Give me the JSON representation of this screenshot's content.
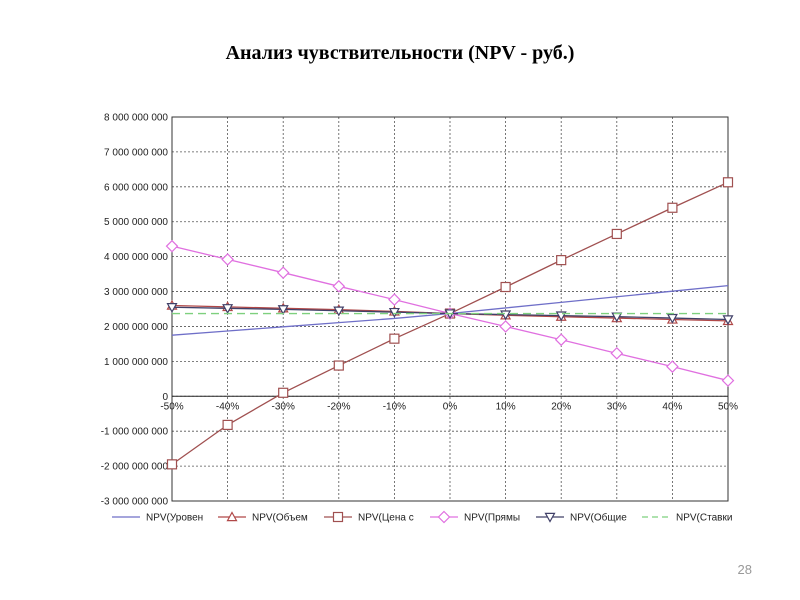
{
  "slide": {
    "title": "Анализ чувствительности (NPV - руб.)",
    "page_number": "28"
  },
  "chart_data": {
    "type": "line",
    "title": "",
    "xlabel": "",
    "ylabel": "",
    "x": [
      -50,
      -40,
      -30,
      -20,
      -10,
      0,
      10,
      20,
      30,
      40,
      50
    ],
    "x_tick_labels": [
      "-50%",
      "-40%",
      "-30%",
      "-20%",
      "-10%",
      "0%",
      "10%",
      "20%",
      "30%",
      "40%",
      "50%"
    ],
    "ylim": [
      -3000000000,
      8000000000
    ],
    "y_ticks": [
      8000000000,
      7000000000,
      6000000000,
      5000000000,
      4000000000,
      3000000000,
      2000000000,
      1000000000,
      0,
      -1000000000,
      -2000000000,
      -3000000000
    ],
    "y_tick_labels": [
      "8 000 000 000",
      "7 000 000 000",
      "6 000 000 000",
      "5 000 000 000",
      "4 000 000 000",
      "3 000 000 000",
      "2 000 000 000",
      "1 000 000 000",
      "0",
      "-1 000 000 000",
      "-2 000 000 000",
      "-3 000 000 000"
    ],
    "grid": true,
    "legend_position": "bottom",
    "series": [
      {
        "name": "NPV(Уровен",
        "color": "#6f6fc8",
        "marker": "none",
        "values": [
          1750000000,
          1870000000,
          1990000000,
          2110000000,
          2230000000,
          2370000000,
          2530000000,
          2690000000,
          2850000000,
          3010000000,
          3170000000
        ]
      },
      {
        "name": "NPV(Объем",
        "color": "#b04848",
        "marker": "triangle-up",
        "values": [
          2600000000,
          2560000000,
          2520000000,
          2480000000,
          2430000000,
          2370000000,
          2320000000,
          2280000000,
          2240000000,
          2200000000,
          2160000000
        ]
      },
      {
        "name": "NPV(Цена с",
        "color": "#a05050",
        "marker": "square",
        "values": [
          -1950000000,
          -820000000,
          100000000,
          880000000,
          1650000000,
          2370000000,
          3130000000,
          3900000000,
          4650000000,
          5400000000,
          6130000000
        ]
      },
      {
        "name": "NPV(Прямы",
        "color": "#e070e0",
        "marker": "diamond",
        "values": [
          4300000000,
          3920000000,
          3540000000,
          3150000000,
          2770000000,
          2370000000,
          2000000000,
          1620000000,
          1230000000,
          850000000,
          450000000
        ]
      },
      {
        "name": "NPV(Общие",
        "color": "#404068",
        "marker": "triangle-down",
        "values": [
          2550000000,
          2520000000,
          2490000000,
          2450000000,
          2410000000,
          2370000000,
          2340000000,
          2310000000,
          2280000000,
          2240000000,
          2200000000
        ]
      },
      {
        "name": "NPV(Ставки",
        "color": "#7ed07e",
        "marker": "none",
        "dashed": true,
        "values": [
          2370000000,
          2370000000,
          2370000000,
          2370000000,
          2370000000,
          2370000000,
          2370000000,
          2370000000,
          2370000000,
          2370000000,
          2370000000
        ]
      }
    ]
  }
}
